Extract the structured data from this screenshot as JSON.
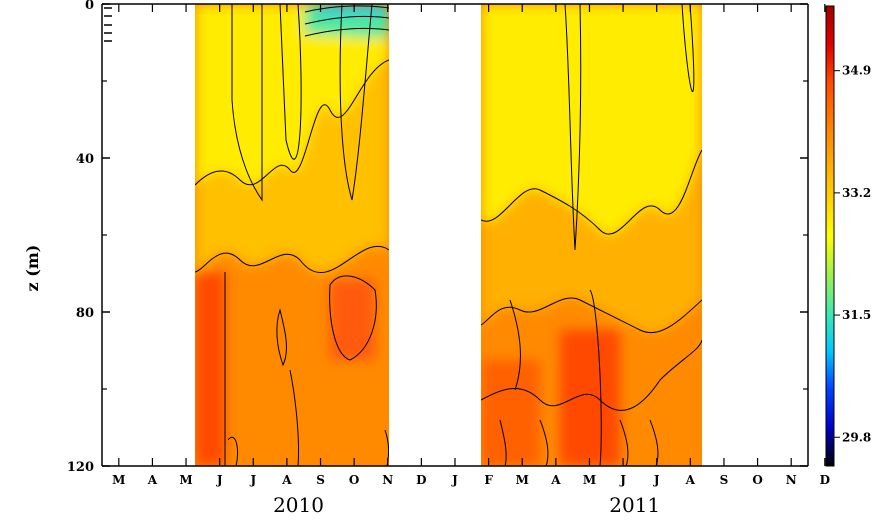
{
  "chart_data": {
    "type": "heatmap",
    "ylabel": "z (m)",
    "ylim": [
      0,
      120
    ],
    "y_ticks": [
      {
        "value": 0,
        "label": "0"
      },
      {
        "value": 40,
        "label": "40"
      },
      {
        "value": 80,
        "label": "80"
      },
      {
        "value": 120,
        "label": "120"
      }
    ],
    "x_month_index_range": [
      0,
      20
    ],
    "months": [
      "M",
      "A",
      "M",
      "J",
      "J",
      "A",
      "S",
      "O",
      "N",
      "D",
      "J",
      "F",
      "M",
      "A",
      "M",
      "J",
      "J",
      "A",
      "S",
      "O",
      "N",
      "D"
    ],
    "years": [
      {
        "label": "2010",
        "month_index": 6
      },
      {
        "label": "2011",
        "month_index": 16
      }
    ],
    "data_segments": [
      {
        "start_month_index": 2.94,
        "end_month_index": 9.0
      },
      {
        "start_month_index": 11.9,
        "end_month_index": 18.85
      }
    ],
    "colorbar": {
      "ticks": [
        {
          "value": 29.8,
          "label": "29.8"
        },
        {
          "value": 31.5,
          "label": "31.5"
        },
        {
          "value": 33.2,
          "label": "33.2"
        },
        {
          "value": 34.9,
          "label": "34.9"
        }
      ],
      "range": [
        29.4,
        35.8
      ],
      "colors": [
        "#000000",
        "#0000c8",
        "#0040ff",
        "#00c8ff",
        "#40e8b0",
        "#a0f050",
        "#ffff00",
        "#ffd200",
        "#ffa800",
        "#ff7a00",
        "#ff4a00",
        "#e00000",
        "#a00000"
      ]
    },
    "grid": false,
    "legend": "none"
  }
}
